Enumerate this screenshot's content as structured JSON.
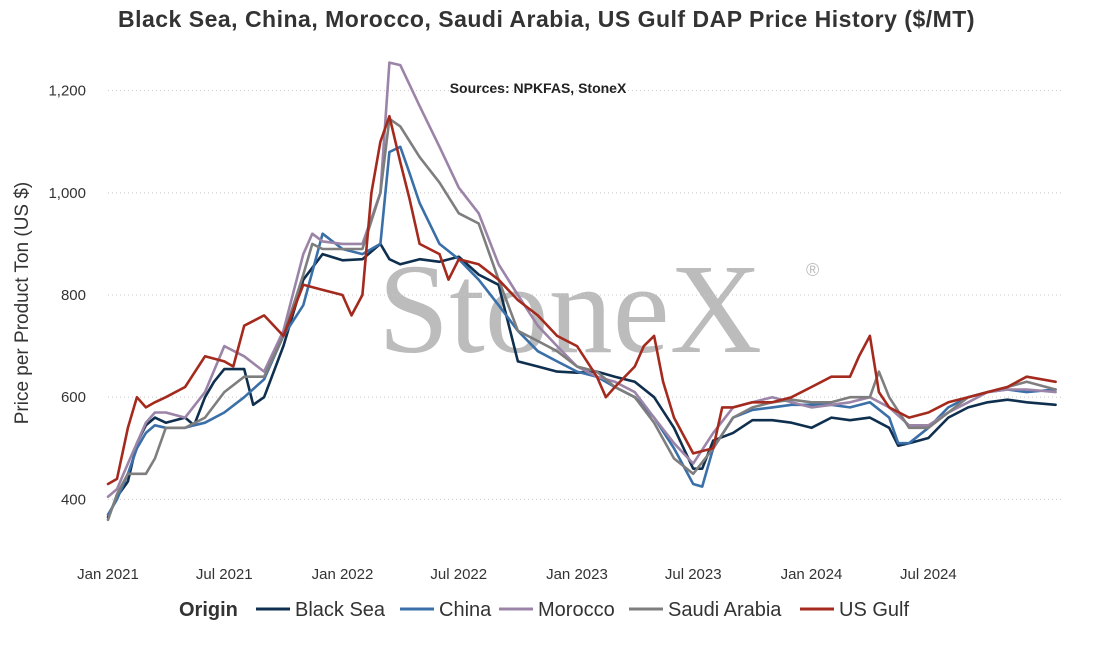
{
  "chart_data": {
    "type": "line",
    "title": "Black Sea, China, Morocco, Saudi Arabia, US Gulf DAP Price History ($/MT)",
    "annotation": "Sources: NPKFAS, StoneX",
    "watermark": "StoneX",
    "watermark_mark": "®",
    "ylabel": "Price per Product Ton (US $)",
    "xlabel": "",
    "ylim": [
      340,
      1260
    ],
    "yticks": [
      400,
      600,
      800,
      1000,
      1200
    ],
    "ytick_labels": [
      "400",
      "600",
      "800",
      "1,000",
      "1,200"
    ],
    "xlim": [
      "2021-01-01",
      "2025-01-25"
    ],
    "xticks": [
      "2021-01-01",
      "2021-07-01",
      "2022-01-01",
      "2022-07-01",
      "2023-01-01",
      "2023-07-01",
      "2024-01-01",
      "2024-07-01"
    ],
    "xtick_labels": [
      "Jan 2021",
      "Jul 2021",
      "Jan 2022",
      "Jul 2022",
      "Jan 2023",
      "Jul 2023",
      "Jan 2024",
      "Jul 2024"
    ],
    "grid": "horizontal dotted",
    "legend": {
      "title": "Origin",
      "placement": "bottom"
    },
    "series": [
      {
        "name": "Black Sea",
        "color": "#0f2f4f",
        "x": [
          "2021-01-01",
          "2021-01-15",
          "2021-02-01",
          "2021-02-15",
          "2021-03-01",
          "2021-03-15",
          "2021-04-01",
          "2021-05-01",
          "2021-05-15",
          "2021-06-01",
          "2021-06-15",
          "2021-07-01",
          "2021-07-15",
          "2021-08-01",
          "2021-08-15",
          "2021-09-01",
          "2021-10-01",
          "2021-11-01",
          "2021-12-01",
          "2022-01-01",
          "2022-02-01",
          "2022-03-01",
          "2022-03-15",
          "2022-04-01",
          "2022-05-01",
          "2022-06-01",
          "2022-07-01",
          "2022-08-01",
          "2022-09-01",
          "2022-10-01",
          "2022-11-01",
          "2022-12-01",
          "2023-01-01",
          "2023-02-01",
          "2023-03-01",
          "2023-04-01",
          "2023-05-01",
          "2023-06-01",
          "2023-07-01",
          "2023-07-15",
          "2023-08-01",
          "2023-09-01",
          "2023-10-01",
          "2023-11-01",
          "2023-12-01",
          "2024-01-01",
          "2024-02-01",
          "2024-03-01",
          "2024-04-01",
          "2024-05-01",
          "2024-05-15",
          "2024-06-01",
          "2024-07-01",
          "2024-08-01",
          "2024-09-01",
          "2024-10-01",
          "2024-11-01",
          "2024-12-01",
          "2025-01-15"
        ],
        "y": [
          365,
          405,
          435,
          510,
          545,
          560,
          550,
          560,
          545,
          600,
          630,
          655,
          655,
          655,
          585,
          600,
          700,
          830,
          880,
          868,
          870,
          900,
          870,
          860,
          870,
          865,
          875,
          840,
          820,
          670,
          660,
          650,
          648,
          650,
          640,
          630,
          600,
          540,
          460,
          460,
          515,
          530,
          555,
          555,
          550,
          540,
          560,
          555,
          560,
          540,
          505,
          510,
          520,
          560,
          580,
          590,
          595,
          590,
          585
        ]
      },
      {
        "name": "China",
        "color": "#3a6fa8",
        "x": [
          "2021-01-01",
          "2021-01-15",
          "2021-02-01",
          "2021-02-15",
          "2021-03-01",
          "2021-03-15",
          "2021-04-01",
          "2021-05-01",
          "2021-05-15",
          "2021-06-01",
          "2021-07-01",
          "2021-08-01",
          "2021-09-01",
          "2021-10-01",
          "2021-11-01",
          "2021-12-01",
          "2022-01-01",
          "2022-02-01",
          "2022-03-01",
          "2022-03-15",
          "2022-04-01",
          "2022-04-15",
          "2022-05-01",
          "2022-06-01",
          "2022-07-01",
          "2022-08-01",
          "2022-09-01",
          "2022-10-01",
          "2022-11-01",
          "2022-12-01",
          "2023-01-01",
          "2023-02-01",
          "2023-03-01",
          "2023-04-01",
          "2023-05-01",
          "2023-06-01",
          "2023-07-01",
          "2023-07-15",
          "2023-08-01",
          "2023-09-01",
          "2023-10-01",
          "2023-11-01",
          "2023-12-01",
          "2024-01-01",
          "2024-02-01",
          "2024-03-01",
          "2024-04-01",
          "2024-05-01",
          "2024-05-15",
          "2024-06-01",
          "2024-07-01",
          "2024-08-01",
          "2024-09-01",
          "2024-10-01",
          "2024-11-01",
          "2024-12-01",
          "2025-01-15"
        ],
        "y": [
          370,
          400,
          450,
          500,
          530,
          545,
          540,
          540,
          545,
          550,
          570,
          600,
          635,
          720,
          780,
          920,
          890,
          880,
          900,
          1080,
          1090,
          1040,
          980,
          900,
          870,
          830,
          780,
          730,
          690,
          670,
          650,
          640,
          620,
          600,
          560,
          500,
          430,
          425,
          500,
          560,
          575,
          580,
          585,
          585,
          585,
          580,
          590,
          560,
          510,
          510,
          540,
          580,
          600,
          610,
          615,
          610,
          615
        ]
      },
      {
        "name": "Morocco",
        "color": "#9b84a8",
        "x": [
          "2021-01-01",
          "2021-01-15",
          "2021-02-01",
          "2021-03-01",
          "2021-03-15",
          "2021-04-01",
          "2021-05-01",
          "2021-06-01",
          "2021-07-01",
          "2021-08-01",
          "2021-09-01",
          "2021-10-01",
          "2021-11-01",
          "2021-11-15",
          "2021-12-01",
          "2022-01-01",
          "2022-02-01",
          "2022-03-01",
          "2022-03-15",
          "2022-04-01",
          "2022-05-01",
          "2022-06-01",
          "2022-07-01",
          "2022-08-01",
          "2022-09-01",
          "2022-10-01",
          "2022-11-01",
          "2022-12-01",
          "2023-01-01",
          "2023-02-01",
          "2023-03-01",
          "2023-04-01",
          "2023-05-01",
          "2023-06-01",
          "2023-07-01",
          "2023-08-01",
          "2023-09-01",
          "2023-10-01",
          "2023-11-01",
          "2023-12-01",
          "2024-01-01",
          "2024-02-01",
          "2024-03-01",
          "2024-04-01",
          "2024-05-01",
          "2024-06-01",
          "2024-07-01",
          "2024-08-01",
          "2024-09-01",
          "2024-10-01",
          "2024-11-01",
          "2024-12-01",
          "2025-01-15"
        ],
        "y": [
          405,
          420,
          470,
          550,
          570,
          570,
          560,
          610,
          700,
          680,
          650,
          730,
          880,
          920,
          905,
          900,
          900,
          1000,
          1255,
          1250,
          1170,
          1090,
          1010,
          960,
          860,
          800,
          740,
          700,
          660,
          640,
          630,
          610,
          560,
          510,
          470,
          530,
          580,
          590,
          600,
          590,
          580,
          585,
          590,
          600,
          580,
          545,
          545,
          570,
          590,
          610,
          615,
          615,
          610
        ]
      },
      {
        "name": "Saudi Arabia",
        "color": "#7e7e7e",
        "x": [
          "2021-01-01",
          "2021-01-15",
          "2021-02-01",
          "2021-03-01",
          "2021-03-15",
          "2021-04-01",
          "2021-05-01",
          "2021-06-01",
          "2021-07-01",
          "2021-08-01",
          "2021-09-01",
          "2021-10-01",
          "2021-11-01",
          "2021-11-15",
          "2021-12-01",
          "2022-01-01",
          "2022-02-01",
          "2022-03-01",
          "2022-03-15",
          "2022-04-01",
          "2022-05-01",
          "2022-06-01",
          "2022-07-01",
          "2022-08-01",
          "2022-09-01",
          "2022-10-01",
          "2022-11-01",
          "2022-12-01",
          "2023-01-01",
          "2023-02-01",
          "2023-03-01",
          "2023-04-01",
          "2023-05-01",
          "2023-06-01",
          "2023-07-01",
          "2023-08-01",
          "2023-09-01",
          "2023-10-01",
          "2023-11-01",
          "2023-12-01",
          "2024-01-01",
          "2024-02-01",
          "2024-03-01",
          "2024-04-01",
          "2024-04-15",
          "2024-05-01",
          "2024-06-01",
          "2024-07-01",
          "2024-08-01",
          "2024-09-01",
          "2024-10-01",
          "2024-11-01",
          "2024-12-01",
          "2025-01-15"
        ],
        "y": [
          360,
          410,
          450,
          450,
          480,
          540,
          540,
          560,
          610,
          640,
          640,
          720,
          840,
          900,
          890,
          890,
          890,
          1000,
          1145,
          1130,
          1070,
          1020,
          960,
          940,
          830,
          730,
          710,
          690,
          660,
          650,
          620,
          600,
          550,
          480,
          450,
          500,
          560,
          580,
          590,
          595,
          590,
          590,
          600,
          600,
          650,
          600,
          540,
          540,
          570,
          600,
          610,
          620,
          630,
          615
        ]
      },
      {
        "name": "US Gulf",
        "color": "#a52a1e",
        "x": [
          "2021-01-01",
          "2021-01-15",
          "2021-02-01",
          "2021-02-15",
          "2021-03-01",
          "2021-03-15",
          "2021-04-01",
          "2021-05-01",
          "2021-06-01",
          "2021-07-01",
          "2021-07-15",
          "2021-08-01",
          "2021-09-01",
          "2021-10-01",
          "2021-11-01",
          "2021-12-01",
          "2022-01-01",
          "2022-01-15",
          "2022-02-01",
          "2022-02-15",
          "2022-03-01",
          "2022-03-15",
          "2022-04-01",
          "2022-04-15",
          "2022-05-01",
          "2022-06-01",
          "2022-06-15",
          "2022-07-01",
          "2022-08-01",
          "2022-09-01",
          "2022-10-01",
          "2022-11-01",
          "2022-12-01",
          "2023-01-01",
          "2023-02-01",
          "2023-02-15",
          "2023-03-01",
          "2023-04-01",
          "2023-04-15",
          "2023-05-01",
          "2023-05-15",
          "2023-06-01",
          "2023-07-01",
          "2023-08-01",
          "2023-08-15",
          "2023-09-01",
          "2023-10-01",
          "2023-11-01",
          "2023-12-01",
          "2024-01-01",
          "2024-02-01",
          "2024-03-01",
          "2024-03-15",
          "2024-04-01",
          "2024-04-15",
          "2024-05-01",
          "2024-06-01",
          "2024-07-01",
          "2024-08-01",
          "2024-09-01",
          "2024-10-01",
          "2024-11-01",
          "2024-12-01",
          "2025-01-15"
        ],
        "y": [
          430,
          440,
          540,
          600,
          580,
          590,
          600,
          620,
          680,
          670,
          660,
          740,
          760,
          720,
          820,
          810,
          800,
          760,
          800,
          1000,
          1100,
          1150,
          1060,
          990,
          900,
          880,
          830,
          870,
          860,
          830,
          790,
          760,
          720,
          700,
          640,
          600,
          620,
          660,
          700,
          720,
          630,
          560,
          490,
          500,
          580,
          580,
          590,
          590,
          600,
          620,
          640,
          640,
          680,
          720,
          610,
          580,
          560,
          570,
          590,
          600,
          610,
          620,
          640,
          630
        ]
      }
    ]
  }
}
